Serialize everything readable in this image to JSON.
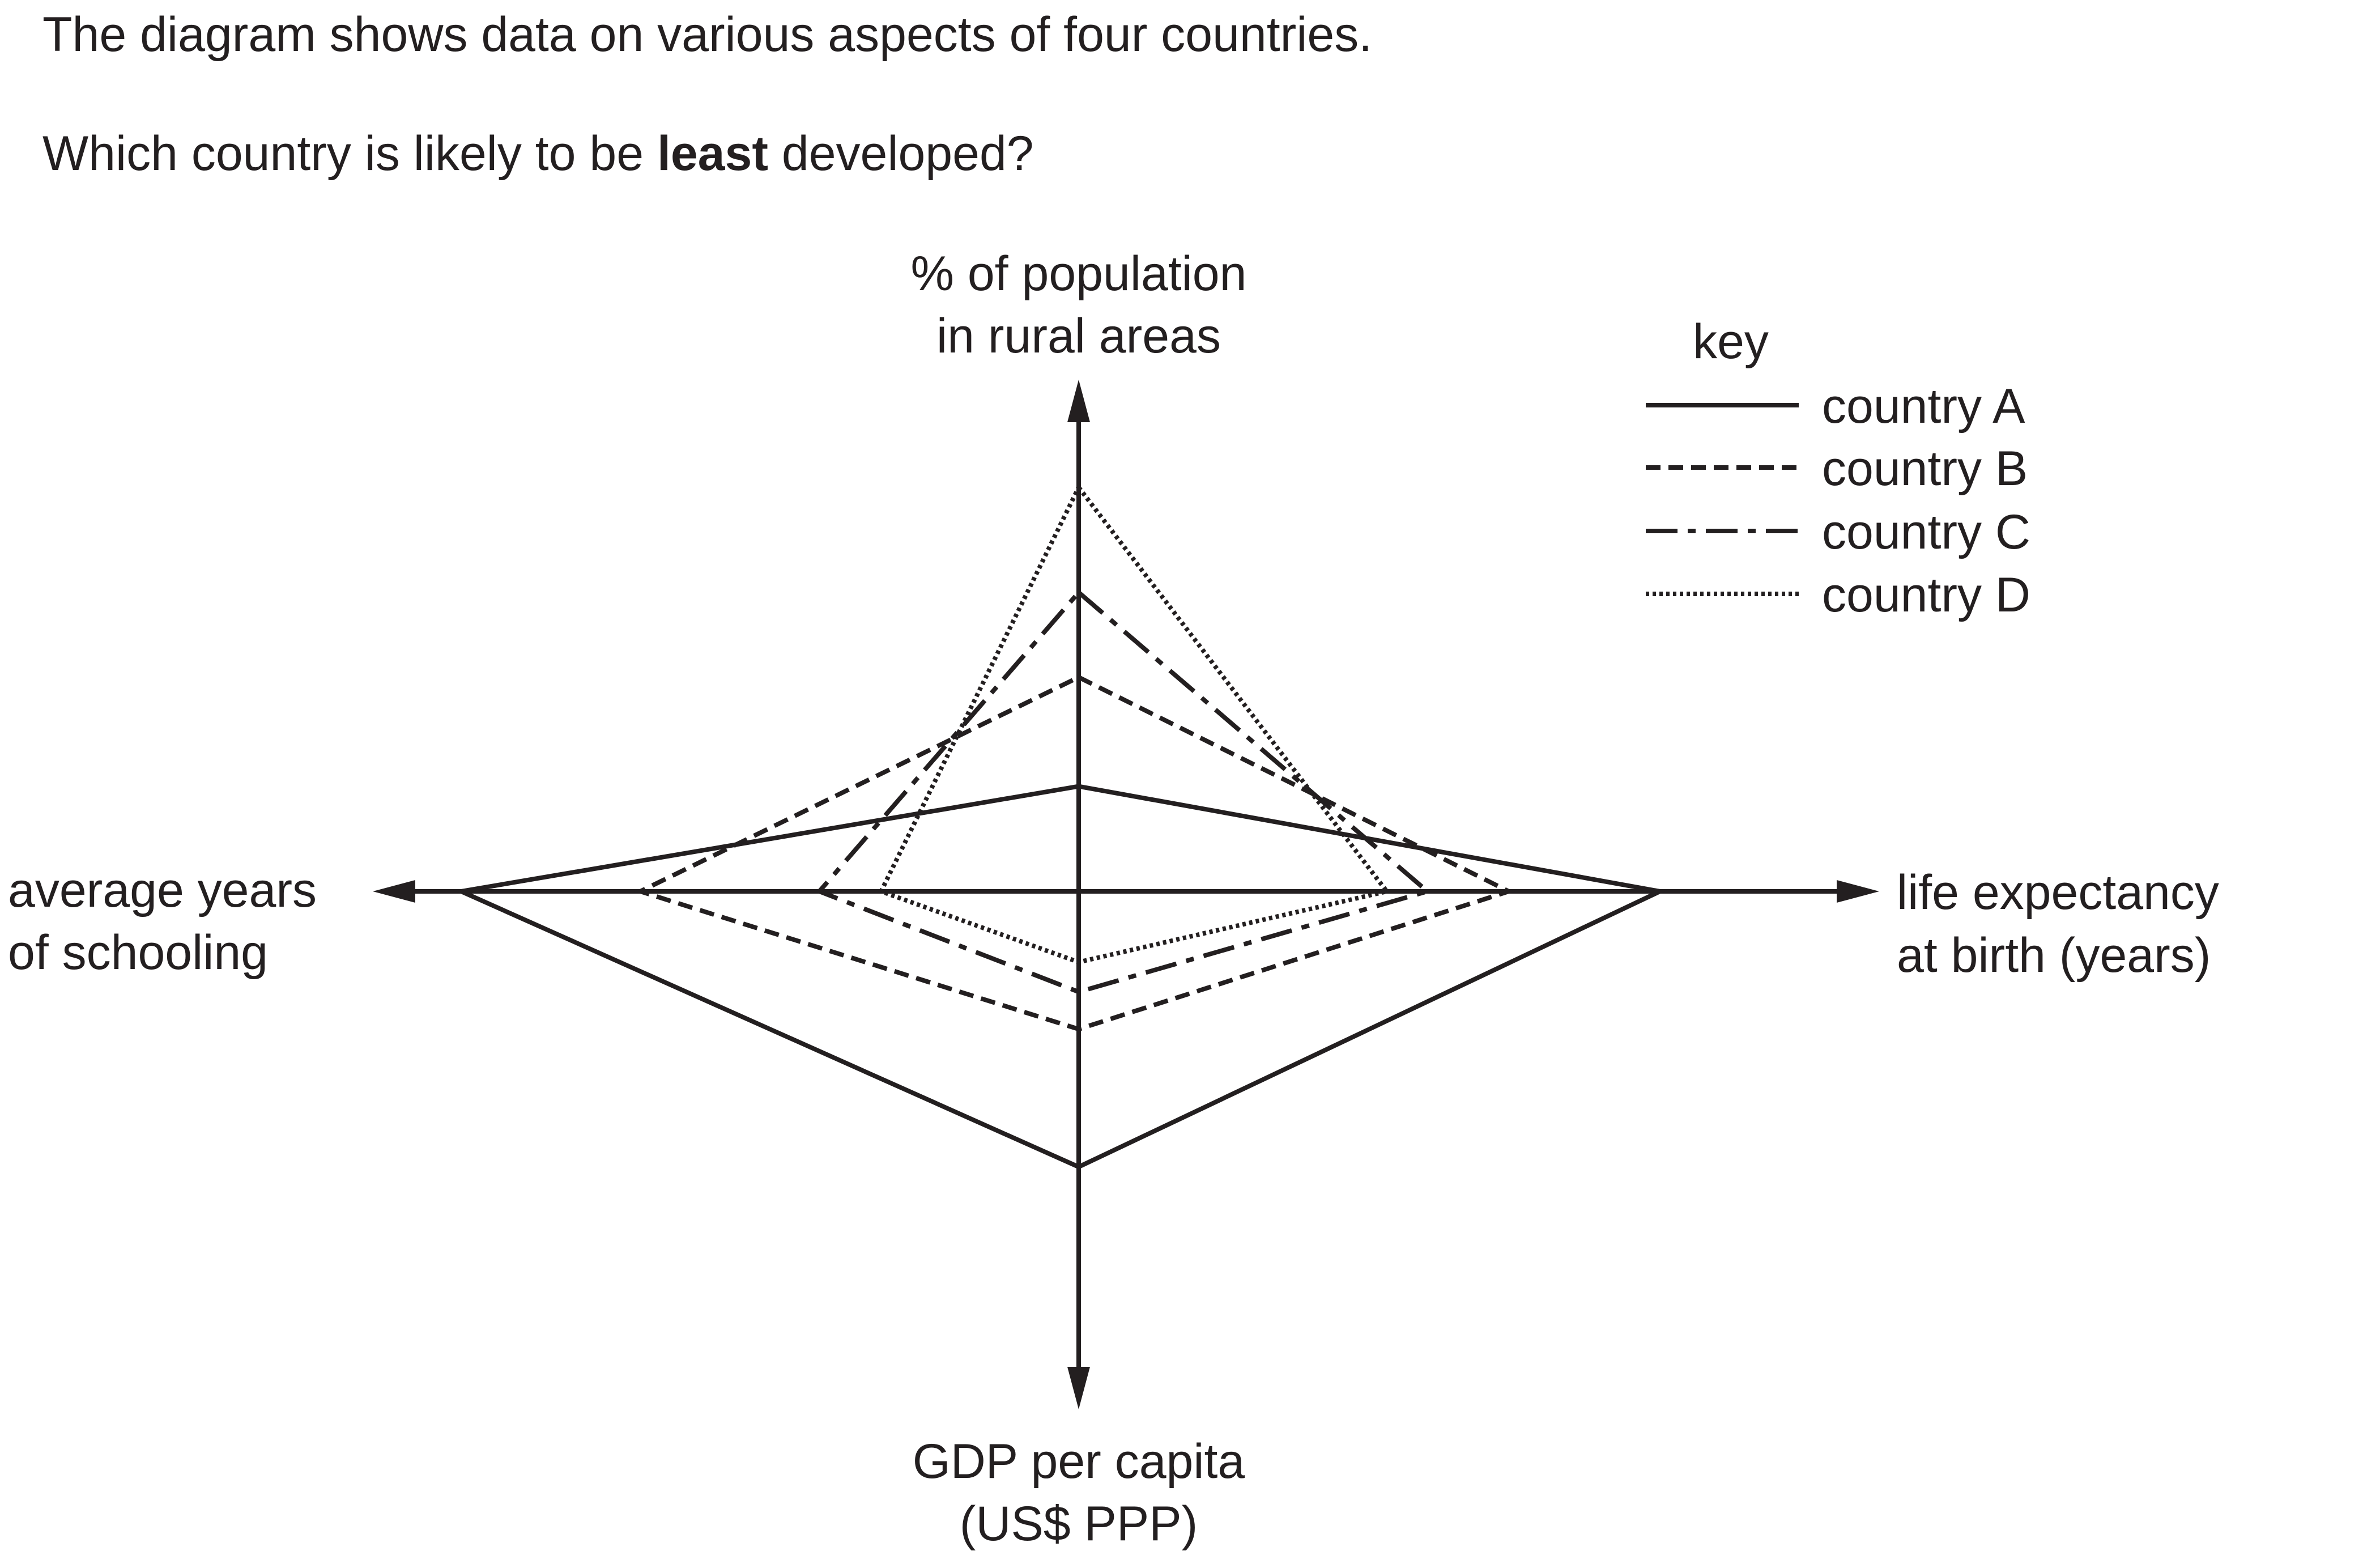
{
  "question": {
    "line1": "The diagram shows data on various aspects of four countries.",
    "line2_before": "Which country is likely to be ",
    "line2_bold": "least",
    "line2_after": " developed?"
  },
  "axes": {
    "top": [
      "% of population",
      "in rural areas"
    ],
    "right": [
      "life expectancy",
      "at birth (years)"
    ],
    "bottom": [
      "GDP per capita",
      "(US$ PPP)"
    ],
    "left": [
      "average years",
      "of schooling"
    ]
  },
  "key": {
    "title": "key",
    "entries": [
      {
        "prefix": "country ",
        "letter": "A",
        "style": "solid"
      },
      {
        "prefix": "country ",
        "letter": "B",
        "style": "dashed"
      },
      {
        "prefix": "country ",
        "letter": "C",
        "style": "dash-dot"
      },
      {
        "prefix": "country ",
        "letter": "D",
        "style": "dotted"
      }
    ]
  },
  "chart_data": {
    "type": "radar",
    "axis_order": [
      "top",
      "right",
      "bottom",
      "left"
    ],
    "series": [
      {
        "name": "country A",
        "style": "solid",
        "values": [
          0.26,
          1.0,
          0.74,
          1.0
        ]
      },
      {
        "name": "country B",
        "style": "dashed",
        "values": [
          0.53,
          0.74,
          0.37,
          0.71
        ]
      },
      {
        "name": "country C",
        "style": "dash-dot",
        "values": [
          0.74,
          0.6,
          0.27,
          0.42
        ]
      },
      {
        "name": "country D",
        "style": "dotted",
        "values": [
          1.0,
          0.53,
          0.19,
          0.32
        ]
      }
    ]
  }
}
